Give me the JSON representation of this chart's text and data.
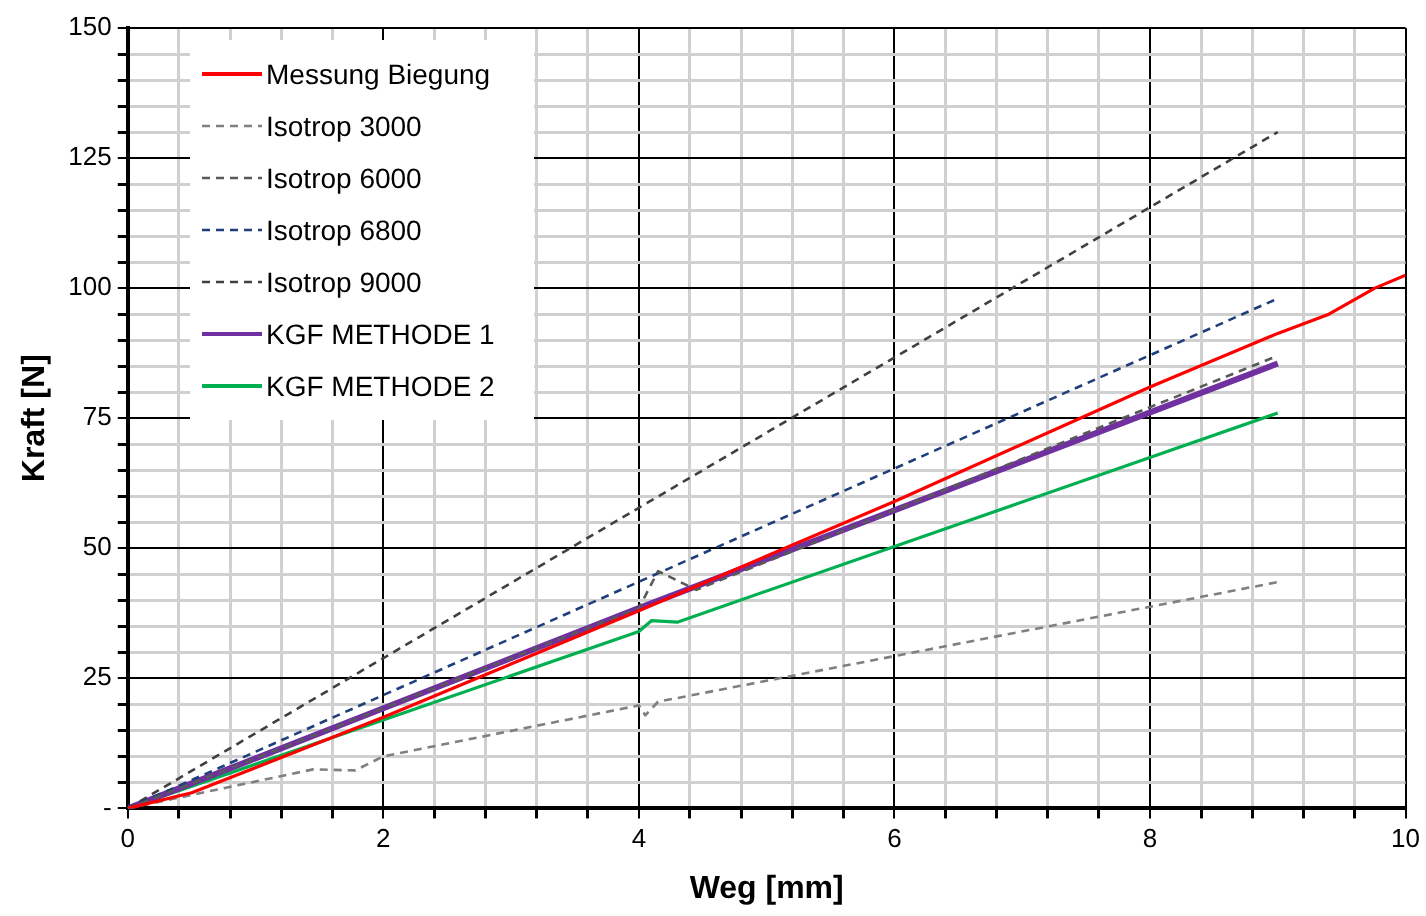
{
  "chart_data": {
    "type": "line",
    "xlabel": "Weg [mm]",
    "ylabel": "Kraft [N]",
    "xlim": [
      0,
      10
    ],
    "ylim": [
      0,
      150
    ],
    "xticks": [
      0,
      {
        "value": 0.4,
        "label": null
      },
      {
        "value": 0.8,
        "label": null
      },
      {
        "value": 1.2,
        "label": null
      },
      {
        "value": 1.6,
        "label": null
      },
      2,
      {
        "value": 2.4,
        "label": null
      },
      {
        "value": 2.8,
        "label": null
      },
      {
        "value": 3.2,
        "label": null
      },
      {
        "value": 3.6,
        "label": null
      },
      4,
      {
        "value": 4.4,
        "label": null
      },
      {
        "value": 4.8,
        "label": null
      },
      {
        "value": 5.2,
        "label": null
      },
      {
        "value": 5.6,
        "label": null
      },
      6,
      {
        "value": 6.4,
        "label": null
      },
      {
        "value": 6.8,
        "label": null
      },
      {
        "value": 7.2,
        "label": null
      },
      {
        "value": 7.6,
        "label": null
      },
      8,
      {
        "value": 8.4,
        "label": null
      },
      {
        "value": 8.8,
        "label": null
      },
      {
        "value": 9.2,
        "label": null
      },
      {
        "value": 9.6,
        "label": null
      },
      10
    ],
    "yticks": [
      {
        "value": 0,
        "label": "-"
      },
      {
        "value": 5,
        "label": null
      },
      {
        "value": 10,
        "label": null
      },
      {
        "value": 15,
        "label": null
      },
      {
        "value": 20,
        "label": null
      },
      25,
      {
        "value": 30,
        "label": null
      },
      {
        "value": 35,
        "label": null
      },
      {
        "value": 40,
        "label": null
      },
      {
        "value": 45,
        "label": null
      },
      50,
      {
        "value": 55,
        "label": null
      },
      {
        "value": 60,
        "label": null
      },
      {
        "value": 65,
        "label": null
      },
      {
        "value": 70,
        "label": null
      },
      75,
      {
        "value": 80,
        "label": null
      },
      {
        "value": 85,
        "label": null
      },
      {
        "value": 90,
        "label": null
      },
      {
        "value": 95,
        "label": null
      },
      100,
      {
        "value": 105,
        "label": null
      },
      {
        "value": 110,
        "label": null
      },
      {
        "value": 115,
        "label": null
      },
      {
        "value": 120,
        "label": null
      },
      125,
      {
        "value": 130,
        "label": null
      },
      {
        "value": 135,
        "label": null
      },
      {
        "value": 140,
        "label": null
      },
      {
        "value": 145,
        "label": null
      },
      150
    ],
    "grid": true,
    "legend": "top left",
    "marker": "none",
    "series": [
      {
        "name": "Messung Biegung",
        "color": "#ff0000",
        "line_style": "solid",
        "x": [
          0,
          0.5,
          2,
          4,
          6,
          8,
          9,
          9.4,
          9.76,
          10
        ],
        "values": [
          0,
          3,
          17.5,
          38,
          59,
          81,
          91.3,
          95,
          100,
          102.5
        ]
      },
      {
        "name": "Isotrop 3000",
        "color": "#808080",
        "line_style": "dashed",
        "x": [
          0,
          1.45,
          1.78,
          2,
          4,
          4.05,
          4.15,
          9
        ],
        "values": [
          0,
          7.5,
          7.3,
          10,
          19.8,
          17.9,
          20.5,
          43.5
        ]
      },
      {
        "name": "Isotrop 6000",
        "color": "#595959",
        "line_style": "dashed",
        "x": [
          0,
          4,
          4.15,
          4.45,
          9
        ],
        "values": [
          0,
          38.5,
          45.6,
          42,
          87
        ]
      },
      {
        "name": "Isotrop 6800",
        "color": "#1f3f7a",
        "line_style": "dashed",
        "x": [
          0,
          9
        ],
        "values": [
          0,
          98
        ]
      },
      {
        "name": "Isotrop 9000",
        "color": "#404040",
        "line_style": "dashed",
        "x": [
          0,
          9
        ],
        "values": [
          0,
          130
        ]
      },
      {
        "name": "KGF METHODE 1",
        "color": "#7030a0",
        "line_style": "solid",
        "x": [
          0,
          4,
          9
        ],
        "values": [
          0,
          38.5,
          85.5
        ]
      },
      {
        "name": "KGF METHODE 2",
        "color": "#00b050",
        "line_style": "solid",
        "x": [
          0,
          4,
          4.1,
          4.3,
          9
        ],
        "values": [
          0,
          34,
          36.1,
          35.8,
          76
        ]
      }
    ]
  }
}
